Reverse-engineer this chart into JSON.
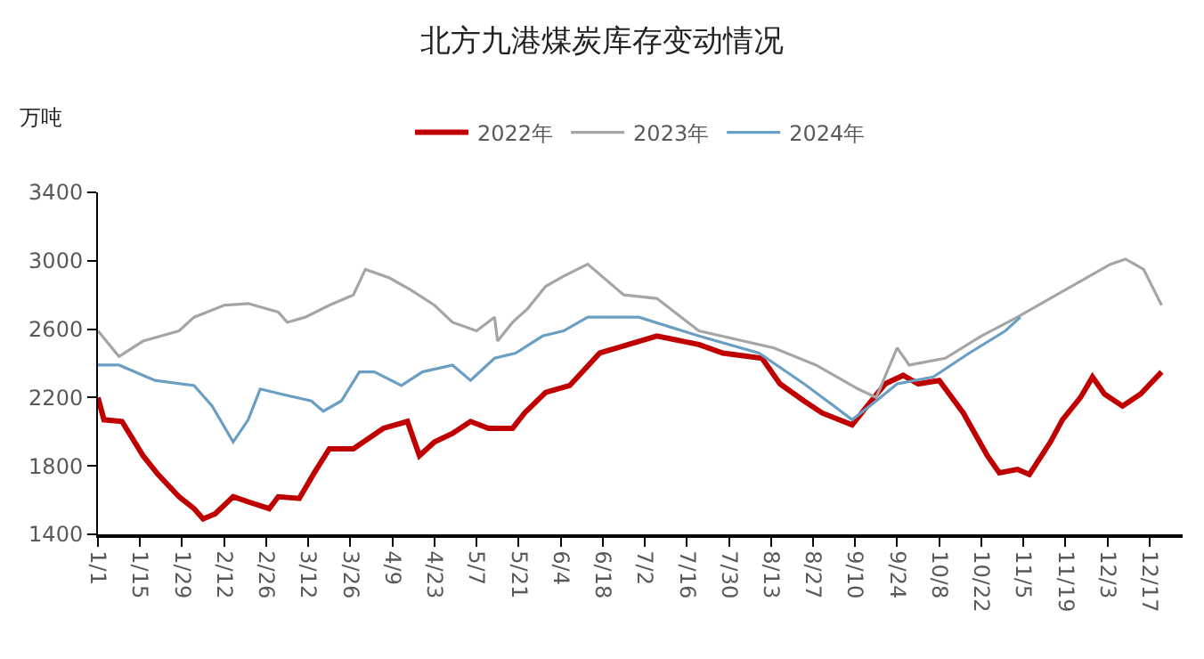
{
  "chart_data": {
    "type": "line",
    "title": "北方九港煤炭库存变动情况",
    "ylabel": "万吨",
    "ylim": [
      1400,
      3400
    ],
    "yticks": [
      1400,
      1800,
      2200,
      2600,
      3000,
      3400
    ],
    "xlim": [
      "--01-01",
      "--12-28"
    ],
    "xticks": [
      {
        "value": "--01-01",
        "label": "1/1"
      },
      {
        "value": "--01-15",
        "label": "1/15"
      },
      {
        "value": "--01-29",
        "label": "1/29"
      },
      {
        "value": "--02-12",
        "label": "2/12"
      },
      {
        "value": "--02-26",
        "label": "2/26"
      },
      {
        "value": "--03-12",
        "label": "3/12"
      },
      {
        "value": "--03-26",
        "label": "3/26"
      },
      {
        "value": "--04-09",
        "label": "4/9"
      },
      {
        "value": "--04-23",
        "label": "4/23"
      },
      {
        "value": "--05-07",
        "label": "5/7"
      },
      {
        "value": "--05-21",
        "label": "5/21"
      },
      {
        "value": "--06-04",
        "label": "6/4"
      },
      {
        "value": "--06-18",
        "label": "6/18"
      },
      {
        "value": "--07-02",
        "label": "7/2"
      },
      {
        "value": "--07-16",
        "label": "7/16"
      },
      {
        "value": "--07-30",
        "label": "7/30"
      },
      {
        "value": "--08-13",
        "label": "8/13"
      },
      {
        "value": "--08-27",
        "label": "8/27"
      },
      {
        "value": "--09-10",
        "label": "9/10"
      },
      {
        "value": "--09-24",
        "label": "9/24"
      },
      {
        "value": "--10-08",
        "label": "10/8"
      },
      {
        "value": "--10-22",
        "label": "10/22"
      },
      {
        "value": "--11-05",
        "label": "11/5"
      },
      {
        "value": "--11-19",
        "label": "11/19"
      },
      {
        "value": "--12-03",
        "label": "12/3"
      },
      {
        "value": "--12-17",
        "label": "12/17"
      }
    ],
    "grid": false,
    "legend": "top",
    "marker": "none",
    "line_style": "solid",
    "series": [
      {
        "name": "2022年",
        "color": "#c00000",
        "x": [
          "--01-01",
          "--01-03",
          "--01-09",
          "--01-16",
          "--01-21",
          "--01-28",
          "--02-02",
          "--02-05",
          "--02-09",
          "--02-15",
          "--02-20",
          "--02-27",
          "--03-02",
          "--03-09",
          "--03-14",
          "--03-19",
          "--03-27",
          "--04-06",
          "--04-14",
          "--04-18",
          "--04-23",
          "--04-29",
          "--05-05",
          "--05-11",
          "--05-19",
          "--05-23",
          "--05-30",
          "--06-07",
          "--06-17",
          "--07-06",
          "--07-20",
          "--07-28",
          "--08-10",
          "--08-16",
          "--08-24",
          "--08-30",
          "--09-09",
          "--09-14",
          "--09-20",
          "--09-26",
          "--10-01",
          "--10-08",
          "--10-16",
          "--10-24",
          "--10-28",
          "--11-03",
          "--11-07",
          "--11-14",
          "--11-18",
          "--11-24",
          "--11-28",
          "--12-02",
          "--12-08",
          "--12-14",
          "--12-21"
        ],
        "values": [
          2200,
          2070,
          2060,
          1860,
          1750,
          1620,
          1550,
          1490,
          1520,
          1620,
          1590,
          1550,
          1620,
          1610,
          1760,
          1900,
          1900,
          2020,
          2060,
          1860,
          1940,
          1990,
          2060,
          2020,
          2020,
          2110,
          2230,
          2270,
          2460,
          2560,
          2510,
          2460,
          2430,
          2280,
          2180,
          2110,
          2040,
          2150,
          2280,
          2330,
          2280,
          2300,
          2110,
          1860,
          1760,
          1780,
          1750,
          1940,
          2070,
          2200,
          2320,
          2220,
          2150,
          2220,
          2350
        ]
      },
      {
        "name": "2023年",
        "color": "#a5a5a5",
        "x": [
          "--01-01",
          "--01-08",
          "--01-16",
          "--01-22",
          "--01-28",
          "--02-02",
          "--02-12",
          "--02-20",
          "--03-02",
          "--03-05",
          "--03-11",
          "--03-19",
          "--03-27",
          "--03-31",
          "--04-08",
          "--04-15",
          "--04-23",
          "--04-29",
          "--05-07",
          "--05-13",
          "--05-14",
          "--05-19",
          "--05-24",
          "--05-30",
          "--06-05",
          "--06-13",
          "--06-25",
          "--07-06",
          "--07-20",
          "--08-14",
          "--08-28",
          "--09-11",
          "--09-17",
          "--09-24",
          "--09-28",
          "--10-10",
          "--10-22",
          "--11-03",
          "--11-16",
          "--12-04",
          "--12-09",
          "--12-15",
          "--12-21"
        ],
        "values": [
          2590,
          2440,
          2530,
          2560,
          2590,
          2670,
          2740,
          2750,
          2700,
          2640,
          2670,
          2740,
          2800,
          2950,
          2900,
          2830,
          2740,
          2640,
          2590,
          2670,
          2530,
          2640,
          2720,
          2850,
          2910,
          2980,
          2800,
          2780,
          2590,
          2490,
          2390,
          2250,
          2200,
          2490,
          2390,
          2430,
          2560,
          2670,
          2800,
          2980,
          3010,
          2950,
          2740
        ]
      },
      {
        "name": "2024年",
        "color": "#6a9ec2",
        "x": [
          "--01-01",
          "--01-08",
          "--01-20",
          "--02-02",
          "--02-08",
          "--02-15",
          "--02-20",
          "--02-24",
          "--03-03",
          "--03-13",
          "--03-17",
          "--03-23",
          "--03-29",
          "--04-03",
          "--04-12",
          "--04-19",
          "--04-29",
          "--05-05",
          "--05-13",
          "--05-20",
          "--05-29",
          "--06-05",
          "--06-13",
          "--06-30",
          "--07-20",
          "--08-09",
          "--08-24",
          "--09-03",
          "--09-09",
          "--09-17",
          "--09-24",
          "--10-06",
          "--10-18",
          "--10-30",
          "--11-04"
        ],
        "values": [
          2390,
          2390,
          2300,
          2270,
          2150,
          1940,
          2070,
          2250,
          2220,
          2180,
          2120,
          2180,
          2350,
          2350,
          2270,
          2350,
          2390,
          2300,
          2430,
          2460,
          2560,
          2590,
          2670,
          2670,
          2560,
          2460,
          2280,
          2150,
          2070,
          2180,
          2280,
          2320,
          2460,
          2590,
          2670
        ]
      }
    ]
  }
}
